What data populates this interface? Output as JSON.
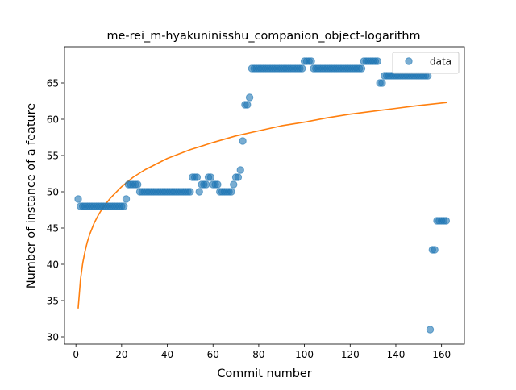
{
  "chart_data": {
    "type": "scatter",
    "title": "me-rei_m-hyakuninisshu_companion_object-logarithm",
    "xlabel": "Commit number",
    "ylabel": "Number of instance of a feature",
    "xlim": [
      -5,
      170
    ],
    "ylim": [
      29,
      70
    ],
    "xticks": [
      0,
      20,
      40,
      60,
      80,
      100,
      120,
      140,
      160
    ],
    "yticks": [
      30,
      35,
      40,
      45,
      50,
      55,
      60,
      65
    ],
    "grid": false,
    "legend": {
      "position": "top-right",
      "entries": [
        "data"
      ]
    },
    "colors": {
      "data": "#1f77b4",
      "fit": "#ff7f0e"
    },
    "series": [
      {
        "name": "data",
        "kind": "scatter",
        "x": [
          1,
          2,
          3,
          4,
          5,
          6,
          7,
          8,
          9,
          10,
          11,
          12,
          13,
          14,
          15,
          16,
          17,
          18,
          19,
          20,
          21,
          22,
          23,
          24,
          25,
          26,
          27,
          28,
          29,
          30,
          31,
          32,
          33,
          34,
          35,
          36,
          37,
          38,
          39,
          40,
          41,
          42,
          43,
          44,
          45,
          46,
          47,
          48,
          49,
          50,
          51,
          52,
          53,
          54,
          55,
          56,
          57,
          58,
          59,
          60,
          61,
          62,
          63,
          64,
          65,
          66,
          67,
          68,
          69,
          70,
          71,
          72,
          73,
          74,
          75,
          76,
          77,
          78,
          79,
          80,
          81,
          82,
          83,
          84,
          85,
          86,
          87,
          88,
          89,
          90,
          91,
          92,
          93,
          94,
          95,
          96,
          97,
          98,
          99,
          100,
          101,
          102,
          103,
          104,
          105,
          106,
          107,
          108,
          109,
          110,
          111,
          112,
          113,
          114,
          115,
          116,
          117,
          118,
          119,
          120,
          121,
          122,
          123,
          124,
          125,
          126,
          127,
          128,
          129,
          130,
          131,
          132,
          133,
          134,
          135,
          136,
          137,
          138,
          139,
          140,
          141,
          142,
          143,
          144,
          145,
          146,
          147,
          148,
          149,
          150,
          151,
          152,
          153,
          154,
          155,
          156,
          157,
          158,
          159,
          160,
          161,
          162
        ],
        "y": [
          49,
          48,
          48,
          48,
          48,
          48,
          48,
          48,
          48,
          48,
          48,
          48,
          48,
          48,
          48,
          48,
          48,
          48,
          48,
          48,
          48,
          49,
          51,
          51,
          51,
          51,
          51,
          50,
          50,
          50,
          50,
          50,
          50,
          50,
          50,
          50,
          50,
          50,
          50,
          50,
          50,
          50,
          50,
          50,
          50,
          50,
          50,
          50,
          50,
          50,
          52,
          52,
          52,
          50,
          51,
          51,
          51,
          52,
          52,
          51,
          51,
          51,
          50,
          50,
          50,
          50,
          50,
          50,
          51,
          52,
          52,
          53,
          57,
          62,
          62,
          63,
          67,
          67,
          67,
          67,
          67,
          67,
          67,
          67,
          67,
          67,
          67,
          67,
          67,
          67,
          67,
          67,
          67,
          67,
          67,
          67,
          67,
          67,
          67,
          68,
          68,
          68,
          68,
          67,
          67,
          67,
          67,
          67,
          67,
          67,
          67,
          67,
          67,
          67,
          67,
          67,
          67,
          67,
          67,
          67,
          67,
          67,
          67,
          67,
          67,
          68,
          68,
          68,
          68,
          68,
          68,
          68,
          65,
          65,
          66,
          66,
          66,
          66,
          66,
          66,
          66,
          66,
          66,
          66,
          66,
          66,
          66,
          66,
          66,
          66,
          66,
          66,
          66,
          66,
          31,
          42,
          42,
          46,
          46,
          46,
          46,
          46
        ]
      },
      {
        "name": "",
        "kind": "line",
        "x": [
          1,
          2,
          3,
          4,
          5,
          6,
          8,
          10,
          12,
          15,
          20,
          25,
          30,
          40,
          50,
          60,
          70,
          80,
          90,
          100,
          110,
          120,
          130,
          140,
          150,
          162
        ],
        "y": [
          34.0,
          37.9,
          40.2,
          41.8,
          43.1,
          44.1,
          45.7,
          46.9,
          47.9,
          49.1,
          50.7,
          52.0,
          53.0,
          54.6,
          55.8,
          56.8,
          57.7,
          58.4,
          59.1,
          59.6,
          60.2,
          60.7,
          61.1,
          61.5,
          61.9,
          62.3
        ]
      }
    ]
  }
}
